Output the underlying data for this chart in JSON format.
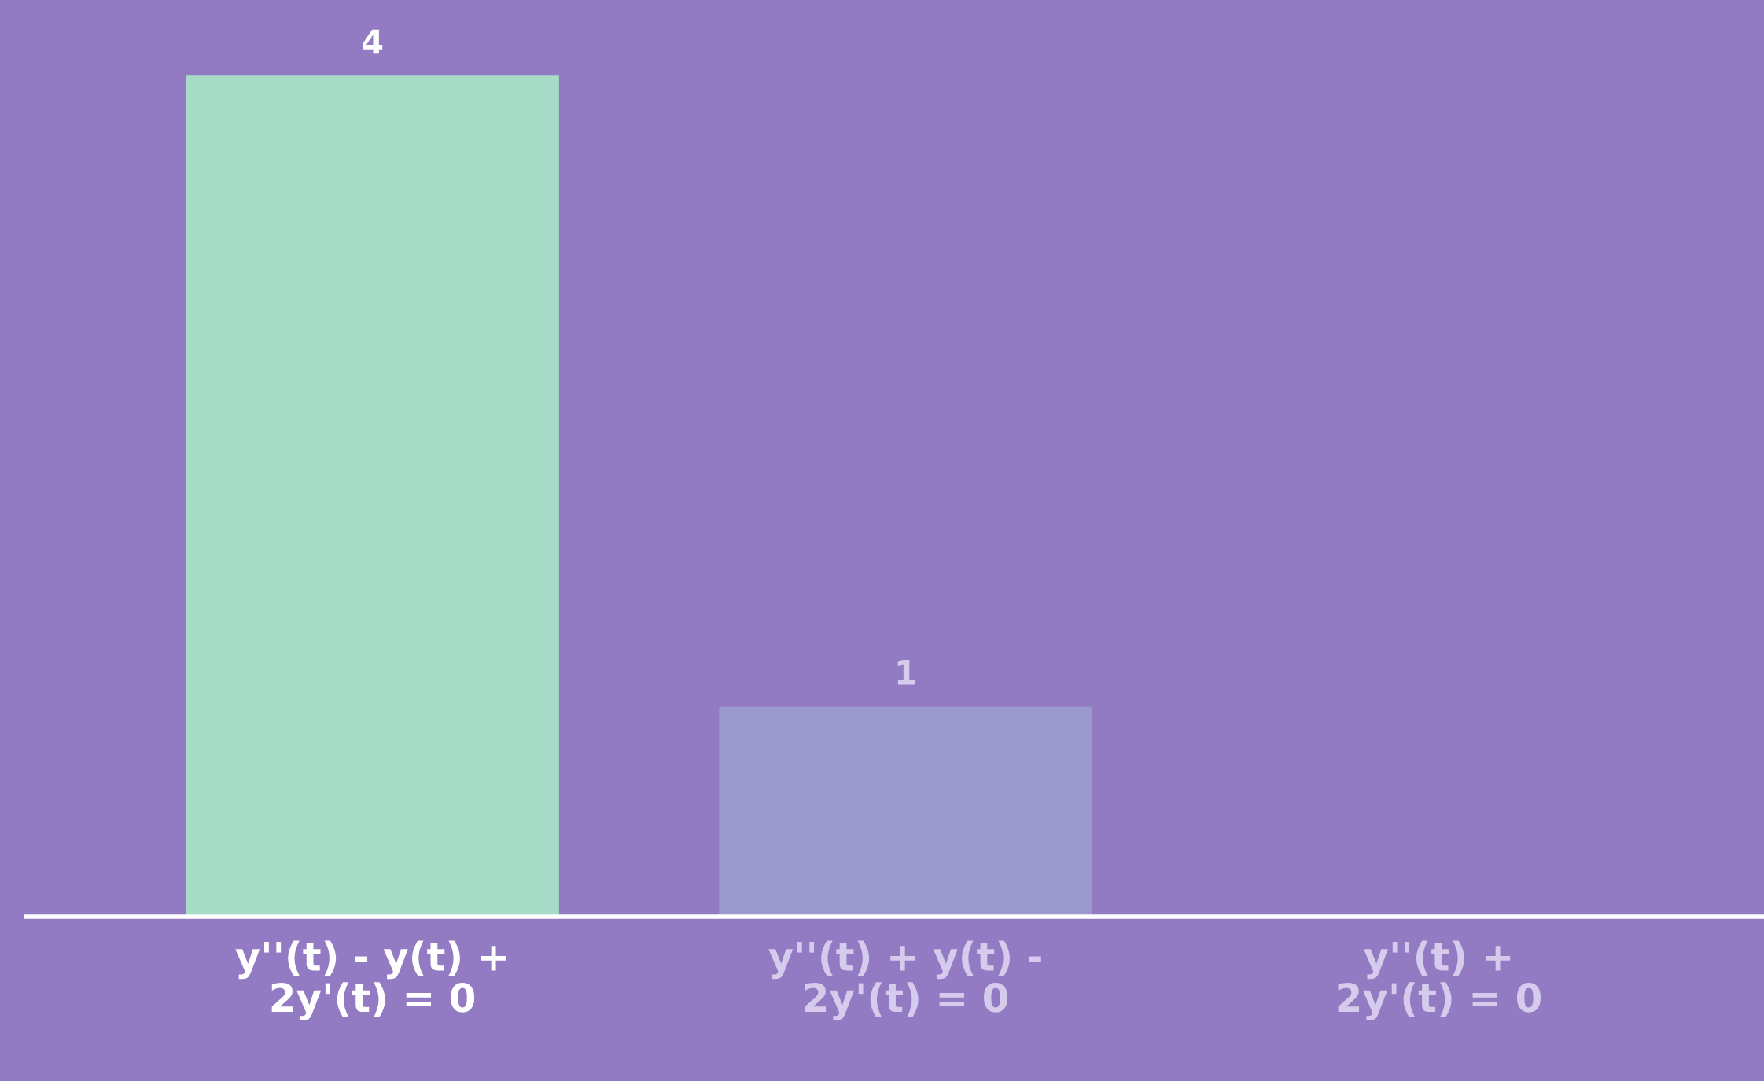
{
  "chart_data": {
    "type": "bar",
    "categories": [
      "y''(t) - y(t) +\n2y'(t) = 0",
      "y''(t) + y(t) -\n2y'(t) = 0",
      "y''(t) +\n2y'(t) = 0"
    ],
    "values": [
      4,
      1,
      0
    ],
    "colors": [
      "#a6dcc7",
      "#9a98cc",
      "#9a98cc"
    ],
    "value_labels": [
      "4",
      "1",
      null
    ],
    "grid": false,
    "legend": false
  }
}
